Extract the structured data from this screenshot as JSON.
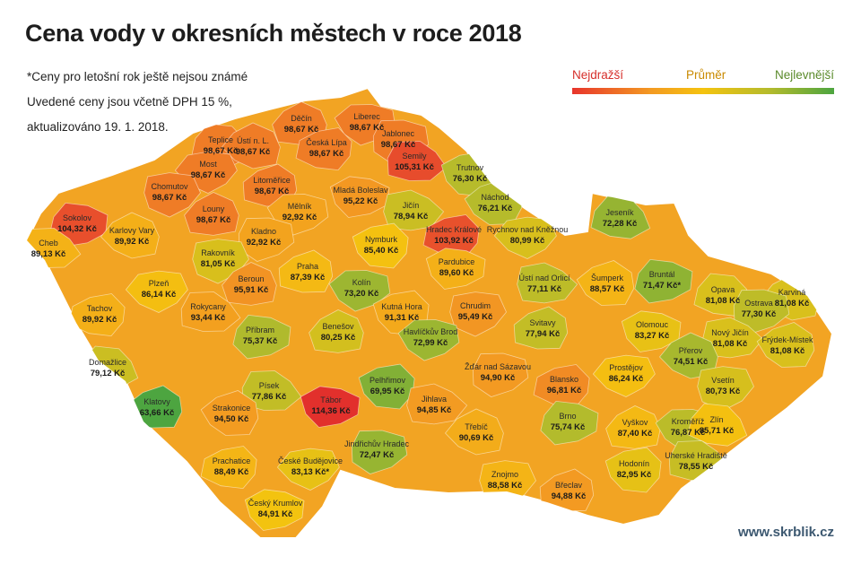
{
  "title": "Cena vody v okresních městech v roce 2018",
  "notes": [
    "*Ceny pro letošní rok ještě nejsou známé",
    "Uvedené ceny jsou včetně DPH 15 %,",
    "aktualizováno 19. 1. 2018."
  ],
  "legend": {
    "high": "Nejdražší",
    "mid": "Průměr",
    "low": "Nejlevnější",
    "colors": [
      "#e8352c",
      "#f39a22",
      "#f4c30f",
      "#b5bb2c",
      "#4da540"
    ]
  },
  "footer": "www.skrblik.cz",
  "districts": [
    {
      "city": "Děčín",
      "price": "98,67 Kč",
      "value": 98.67
    },
    {
      "city": "Liberec",
      "price": "98,67 Kč",
      "value": 98.67
    },
    {
      "city": "Teplice",
      "price": "98,67 Kč",
      "value": 98.67
    },
    {
      "city": "Ústí n. L.",
      "price": "98,67 Kč",
      "value": 98.67
    },
    {
      "city": "Jablonec",
      "price": "98,67 Kč",
      "value": 98.67
    },
    {
      "city": "Česká Lípa",
      "price": "98,67 Kč",
      "value": 98.67
    },
    {
      "city": "Most",
      "price": "98,67 Kč",
      "value": 98.67
    },
    {
      "city": "Semily",
      "price": "105,31 Kč",
      "value": 105.31
    },
    {
      "city": "Trutnov",
      "price": "76,30 Kč",
      "value": 76.3
    },
    {
      "city": "Chomutov",
      "price": "98,67 Kč",
      "value": 98.67
    },
    {
      "city": "Litoměřice",
      "price": "98,67 Kč",
      "value": 98.67
    },
    {
      "city": "Mladá Boleslav",
      "price": "95,22 Kč",
      "value": 95.22
    },
    {
      "city": "Jičín",
      "price": "78,94 Kč",
      "value": 78.94
    },
    {
      "city": "Náchod",
      "price": "76,21 Kč",
      "value": 76.21
    },
    {
      "city": "Sokolov",
      "price": "104,32 Kč",
      "value": 104.32
    },
    {
      "city": "Louny",
      "price": "98,67 Kč",
      "value": 98.67
    },
    {
      "city": "Mělník",
      "price": "92,92 Kč",
      "value": 92.92
    },
    {
      "city": "Jeseník",
      "price": "72,28 Kč",
      "value": 72.28
    },
    {
      "city": "Karlovy Vary",
      "price": "89,92 Kč",
      "value": 89.92
    },
    {
      "city": "Kladno",
      "price": "92,92 Kč",
      "value": 92.92
    },
    {
      "city": "Hradec Králové",
      "price": "103,92 Kč",
      "value": 103.92
    },
    {
      "city": "Rychnov nad Kněžnou",
      "price": "80,99 Kč",
      "value": 80.99
    },
    {
      "city": "Cheb",
      "price": "89,13 Kč",
      "value": 89.13
    },
    {
      "city": "Nymburk",
      "price": "85,40 Kč",
      "value": 85.4
    },
    {
      "city": "Rakovník",
      "price": "81,05 Kč",
      "value": 81.05
    },
    {
      "city": "Praha",
      "price": "87,39 Kč",
      "value": 87.39
    },
    {
      "city": "Pardubice",
      "price": "89,60 Kč",
      "value": 89.6
    },
    {
      "city": "Ústí nad Orlicí",
      "price": "77,11 Kč",
      "value": 77.11
    },
    {
      "city": "Šumperk",
      "price": "88,57 Kč",
      "value": 88.57
    },
    {
      "city": "Bruntál",
      "price": "71,47 Kč*",
      "value": 71.47
    },
    {
      "city": "Beroun",
      "price": "95,91 Kč",
      "value": 95.91
    },
    {
      "city": "Kolín",
      "price": "73,20 Kč",
      "value": 73.2
    },
    {
      "city": "Opava",
      "price": "81,08 Kč",
      "value": 81.08
    },
    {
      "city": "Karviná",
      "price": "81,08 Kč",
      "value": 81.08
    },
    {
      "city": "Ostrava",
      "price": "77,30 Kč",
      "value": 77.3
    },
    {
      "city": "Tachov",
      "price": "89,92 Kč",
      "value": 89.92
    },
    {
      "city": "Plzeň",
      "price": "86,14 Kč",
      "value": 86.14
    },
    {
      "city": "Rokycany",
      "price": "93,44 Kč",
      "value": 93.44
    },
    {
      "city": "Kutná Hora",
      "price": "91,31 Kč",
      "value": 91.31
    },
    {
      "city": "Chrudim",
      "price": "95,49 Kč",
      "value": 95.49
    },
    {
      "city": "Svitavy",
      "price": "77,94 Kč",
      "value": 77.94
    },
    {
      "city": "Olomouc",
      "price": "83,27 Kč",
      "value": 83.27
    },
    {
      "city": "Nový Jičín",
      "price": "81,08 Kč",
      "value": 81.08
    },
    {
      "city": "Frýdek-Místek",
      "price": "81,08 Kč",
      "value": 81.08
    },
    {
      "city": "Příbram",
      "price": "75,37 Kč",
      "value": 75.37
    },
    {
      "city": "Benešov",
      "price": "80,25 Kč",
      "value": 80.25
    },
    {
      "city": "Havlíčkův Brod",
      "price": "72,99 Kč",
      "value": 72.99
    },
    {
      "city": "Domažlice",
      "price": "79,12 Kč",
      "value": 79.12
    },
    {
      "city": "Přerov",
      "price": "74,51 Kč",
      "value": 74.51
    },
    {
      "city": "Žďár nad Sázavou",
      "price": "94,90 Kč",
      "value": 94.9
    },
    {
      "city": "Blansko",
      "price": "96,81 Kč",
      "value": 96.81
    },
    {
      "city": "Prostějov",
      "price": "86,24 Kč",
      "value": 86.24
    },
    {
      "city": "Písek",
      "price": "77,86 Kč",
      "value": 77.86
    },
    {
      "city": "Pelhřimov",
      "price": "69,95 Kč",
      "value": 69.95
    },
    {
      "city": "Vsetín",
      "price": "80,73 Kč",
      "value": 80.73
    },
    {
      "city": "Klatovy",
      "price": "63,66 Kč",
      "value": 63.66
    },
    {
      "city": "Tábor",
      "price": "114,36 Kč",
      "value": 114.36
    },
    {
      "city": "Jihlava",
      "price": "94,85 Kč",
      "value": 94.85
    },
    {
      "city": "Strakonice",
      "price": "94,50 Kč",
      "value": 94.5
    },
    {
      "city": "Brno",
      "price": "75,74 Kč",
      "value": 75.74
    },
    {
      "city": "Vyškov",
      "price": "87,40 Kč",
      "value": 87.4
    },
    {
      "city": "Kroměříž",
      "price": "76,87 Kč",
      "value": 76.87
    },
    {
      "city": "Zlín",
      "price": "85,71 Kč",
      "value": 85.71
    },
    {
      "city": "Třebíč",
      "price": "90,69 Kč",
      "value": 90.69
    },
    {
      "city": "Jindřichův Hradec",
      "price": "72,47 Kč",
      "value": 72.47
    },
    {
      "city": "Prachatice",
      "price": "88,49 Kč",
      "value": 88.49
    },
    {
      "city": "České Budějovice",
      "price": "83,13 Kč*",
      "value": 83.13
    },
    {
      "city": "Uherské Hradiště",
      "price": "78,55 Kč",
      "value": 78.55
    },
    {
      "city": "Hodonín",
      "price": "82,95 Kč",
      "value": 82.95
    },
    {
      "city": "Znojmo",
      "price": "88,58 Kč",
      "value": 88.58
    },
    {
      "city": "Břeclav",
      "price": "94,88 Kč",
      "value": 94.88
    },
    {
      "city": "Český Krumlov",
      "price": "84,91 Kč",
      "value": 84.91
    }
  ]
}
